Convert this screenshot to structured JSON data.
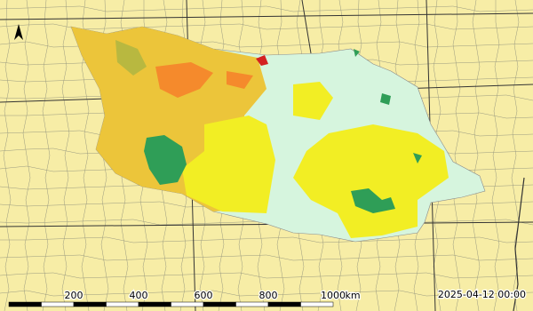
{
  "scale_bar": {
    "labels": [
      "200",
      "400",
      "600",
      "800",
      "1000"
    ],
    "unit": "km"
  },
  "timestamp": "2025-04-12 00:00"
}
